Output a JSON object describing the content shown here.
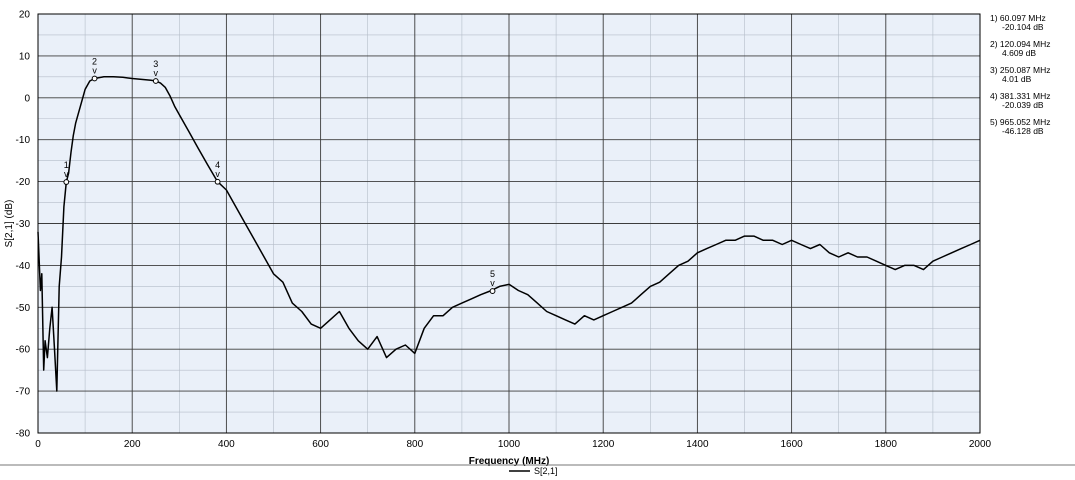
{
  "chart_data": {
    "type": "line",
    "title": "",
    "xlabel": "Frequency (MHz)",
    "ylabel": "S[2,1] (dB)",
    "xlim": [
      0,
      2000
    ],
    "ylim": [
      -80,
      20
    ],
    "x_ticks": [
      "0",
      "200",
      "400",
      "600",
      "800",
      "1000",
      "1200",
      "1400",
      "1600",
      "1800",
      "2000"
    ],
    "y_ticks": [
      "20",
      "10",
      "0",
      "-10",
      "-20",
      "-30",
      "-40",
      "-50",
      "-60",
      "-70",
      "-80"
    ],
    "grid": true,
    "minor_grid": true,
    "plot_background": "#eaf0f9",
    "line_color": "#000000",
    "legend": {
      "position": "bottom-center",
      "entries": [
        "S[2,1]"
      ]
    },
    "series": [
      {
        "name": "S[2,1]",
        "x": [
          0,
          5,
          8,
          12,
          15,
          20,
          25,
          30,
          35,
          40,
          45,
          50,
          55,
          60,
          65,
          70,
          75,
          80,
          90,
          100,
          110,
          120,
          140,
          160,
          180,
          200,
          220,
          240,
          250,
          260,
          270,
          280,
          290,
          300,
          320,
          340,
          360,
          381,
          400,
          420,
          440,
          460,
          480,
          500,
          520,
          540,
          560,
          580,
          600,
          620,
          640,
          660,
          680,
          700,
          720,
          740,
          760,
          780,
          800,
          820,
          840,
          860,
          880,
          900,
          920,
          940,
          960,
          980,
          1000,
          1020,
          1040,
          1060,
          1080,
          1100,
          1120,
          1140,
          1160,
          1180,
          1200,
          1220,
          1240,
          1260,
          1280,
          1300,
          1320,
          1340,
          1360,
          1380,
          1400,
          1420,
          1440,
          1460,
          1480,
          1500,
          1520,
          1540,
          1560,
          1580,
          1600,
          1620,
          1640,
          1660,
          1680,
          1700,
          1720,
          1740,
          1760,
          1780,
          1800,
          1820,
          1840,
          1860,
          1880,
          1900,
          1920,
          1940,
          1960,
          1980,
          2000
        ],
        "y": [
          -32,
          -46,
          -42,
          -65,
          -58,
          -62,
          -55,
          -50,
          -60,
          -70,
          -45,
          -38,
          -26,
          -20.1,
          -18,
          -13,
          -9,
          -6,
          -2,
          2,
          4,
          4.6,
          5,
          5,
          4.9,
          4.6,
          4.4,
          4.2,
          4,
          3.5,
          2.5,
          0.5,
          -2,
          -4,
          -8,
          -12,
          -16,
          -20.0,
          -22,
          -26,
          -30,
          -34,
          -38,
          -42,
          -44,
          -49,
          -51,
          -54,
          -55,
          -53,
          -51,
          -55,
          -58,
          -60,
          -57,
          -62,
          -60,
          -59,
          -61,
          -55,
          -52,
          -52,
          -50,
          -49,
          -48,
          -47,
          -46.1,
          -45,
          -44.5,
          -46,
          -47,
          -49,
          -51,
          -52,
          -53,
          -54,
          -52,
          -53,
          -52,
          -51,
          -50,
          -49,
          -47,
          -45,
          -44,
          -42,
          -40,
          -39,
          -37,
          -36,
          -35,
          -34,
          -34,
          -33,
          -33,
          -34,
          -34,
          -35,
          -34,
          -35,
          -36,
          -35,
          -37,
          -38,
          -37,
          -38,
          -38,
          -39,
          -40,
          -41,
          -40,
          -40,
          -41,
          -39,
          -38,
          -37,
          -36,
          -35,
          -34
        ]
      }
    ],
    "markers": [
      {
        "id": "1",
        "freq": 60.097,
        "db": -20.104,
        "panel_freq": "60.097 MHz",
        "panel_db": "-20.104 dB"
      },
      {
        "id": "2",
        "freq": 120.094,
        "db": 4.609,
        "panel_freq": "120.094 MHz",
        "panel_db": "4.609 dB"
      },
      {
        "id": "3",
        "freq": 250.087,
        "db": 4.01,
        "panel_freq": "250.087 MHz",
        "panel_db": "4.01 dB"
      },
      {
        "id": "4",
        "freq": 381.331,
        "db": -20.039,
        "panel_freq": "381.331 MHz",
        "panel_db": "-20.039 dB"
      },
      {
        "id": "5",
        "freq": 965.052,
        "db": -46.128,
        "panel_freq": "965.052 MHz",
        "panel_db": "-46.128 dB"
      }
    ],
    "marker_glyph": "v"
  }
}
